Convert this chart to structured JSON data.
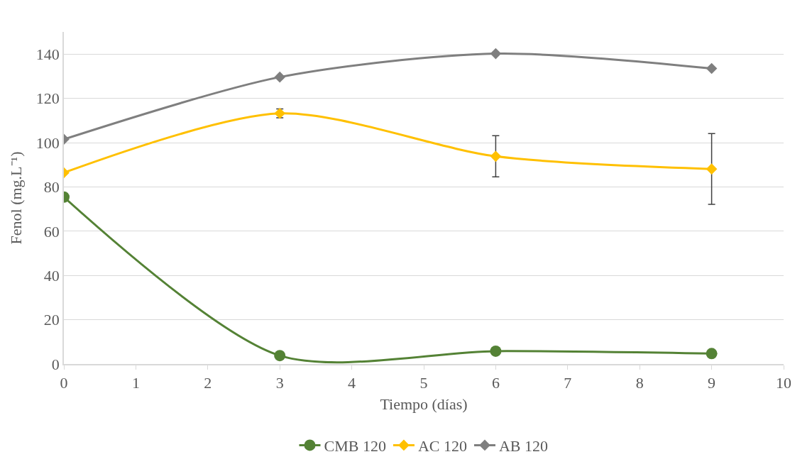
{
  "chart_data": {
    "type": "line",
    "xlabel": "Tiempo (días)",
    "ylabel": "Fenol (mg.L⁻¹)",
    "xlim": [
      0,
      10
    ],
    "xticks": [
      0,
      1,
      2,
      3,
      4,
      5,
      6,
      7,
      8,
      9,
      10
    ],
    "ylim": [
      0,
      150
    ],
    "yticks": [
      0,
      20,
      40,
      60,
      80,
      100,
      120,
      140
    ],
    "grid": "y",
    "legend": "bottom",
    "line_style": "solid",
    "series": [
      {
        "name": "CMB 120",
        "color": "#548235",
        "x": [
          0,
          3,
          6,
          9
        ],
        "values": [
          75.4,
          3.8,
          5.8,
          4.7
        ],
        "marker": "circle"
      },
      {
        "name": "AC 120",
        "color": "#ffc000",
        "x": [
          0,
          3,
          6,
          9
        ],
        "values": [
          86.4,
          113.2,
          93.8,
          88.1
        ],
        "errors": [
          null,
          2,
          9.3,
          16
        ],
        "marker": "diamond"
      },
      {
        "name": "AB 120",
        "color": "#7f7f7f",
        "x": [
          0,
          3,
          6,
          9
        ],
        "values": [
          101.5,
          129.6,
          140.2,
          133.5
        ],
        "marker": "diamond"
      }
    ]
  }
}
